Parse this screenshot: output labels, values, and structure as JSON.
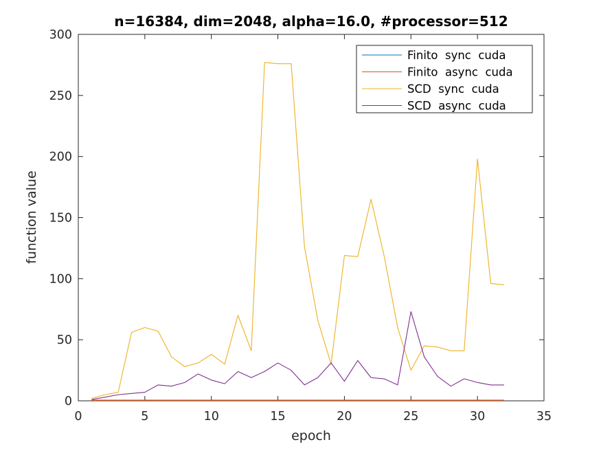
{
  "chart_data": {
    "type": "line",
    "title": "n=16384, dim=2048, alpha=16.0, #processor=512",
    "xlabel": "epoch",
    "ylabel": "function value",
    "xlim": [
      0,
      35
    ],
    "ylim": [
      0,
      300
    ],
    "xticks": [
      0,
      5,
      10,
      15,
      20,
      25,
      30,
      35
    ],
    "yticks": [
      0,
      50,
      100,
      150,
      200,
      250,
      300
    ],
    "grid": false,
    "legend_position": "top-right",
    "x": [
      1,
      2,
      3,
      4,
      5,
      6,
      7,
      8,
      9,
      10,
      11,
      12,
      13,
      14,
      15,
      16,
      17,
      18,
      19,
      20,
      21,
      22,
      23,
      24,
      25,
      26,
      27,
      28,
      29,
      30,
      31,
      32
    ],
    "series": [
      {
        "name": "Finito  sync  cuda",
        "color": "#0072BD",
        "values": [
          0.5,
          0.5,
          0.5,
          0.5,
          0.5,
          0.5,
          0.5,
          0.5,
          0.5,
          0.5,
          0.5,
          0.5,
          0.5,
          0.5,
          0.5,
          0.5,
          0.5,
          0.5,
          0.5,
          0.5,
          0.5,
          0.5,
          0.5,
          0.5,
          0.5,
          0.5,
          0.5,
          0.5,
          0.5,
          0.5,
          0.5,
          0.5
        ]
      },
      {
        "name": "Finito  async  cuda",
        "color": "#D95319",
        "values": [
          0.3,
          0.3,
          0.3,
          0.3,
          0.3,
          0.3,
          0.3,
          0.3,
          0.3,
          0.3,
          0.3,
          0.3,
          0.3,
          0.3,
          0.3,
          0.3,
          0.3,
          0.3,
          0.3,
          0.3,
          0.3,
          0.3,
          0.3,
          0.3,
          0.3,
          0.3,
          0.3,
          0.3,
          0.3,
          0.3,
          0.3,
          0.3
        ]
      },
      {
        "name": "SCD  sync  cuda",
        "color": "#EDB120",
        "values": [
          2,
          5,
          7,
          56,
          60,
          57,
          36,
          28,
          31,
          38,
          30,
          70,
          41,
          277,
          276,
          276,
          126,
          66,
          30,
          119,
          118,
          165,
          118,
          60,
          25,
          45,
          44,
          41,
          41,
          198,
          96,
          95
        ]
      },
      {
        "name": "SCD  async  cuda",
        "color": "#7E2F8E",
        "values": [
          1,
          3,
          5,
          6,
          7,
          13,
          12,
          15,
          22,
          17,
          14,
          24,
          19,
          24,
          31,
          25,
          13,
          19,
          31,
          16,
          33,
          19,
          18,
          13,
          73,
          36,
          20,
          12,
          18,
          15,
          13,
          13
        ]
      }
    ]
  }
}
